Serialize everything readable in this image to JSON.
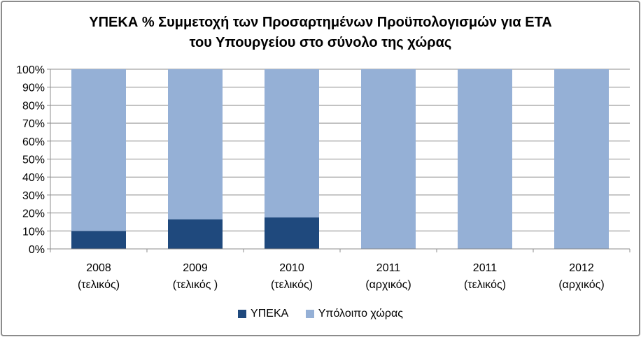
{
  "chart_data": {
    "type": "bar",
    "stacked": true,
    "title_lines": [
      "ΥΠΕΚΑ % Συμμετοχή των Προσαρτημένων Προϋπολογισμών για ΕΤΑ",
      "του Υπουργείου  στο σύνολο της χώρας"
    ],
    "categories": [
      [
        "2008",
        "(τελικός)"
      ],
      [
        "2009",
        "(τελικός )"
      ],
      [
        "2010",
        "(τελικός)"
      ],
      [
        "2011",
        "(αρχικός)"
      ],
      [
        "2011",
        "(τελικός)"
      ],
      [
        "2012",
        "(αρχικός)"
      ]
    ],
    "series": [
      {
        "name": "ΥΠΕΚΑ",
        "color": "#1f497d",
        "values": [
          10,
          16.5,
          17.5,
          0,
          0,
          0
        ]
      },
      {
        "name": "Υπόλοιπο χώρας",
        "color": "#95b0d6",
        "values": [
          90,
          83.5,
          82.5,
          100,
          100,
          100
        ]
      }
    ],
    "ylim": [
      0,
      100
    ],
    "yticks": [
      "0%",
      "10%",
      "20%",
      "30%",
      "40%",
      "50%",
      "60%",
      "70%",
      "80%",
      "90%",
      "100%"
    ],
    "grid": true,
    "legend_position": "bottom"
  }
}
